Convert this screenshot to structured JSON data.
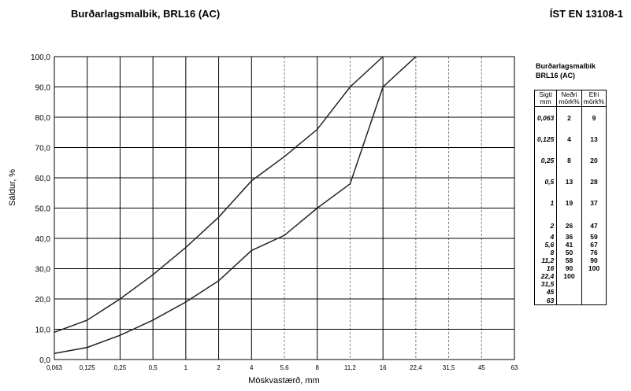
{
  "header": {
    "title": "Burðarlagsmalbik, BRL16 (AC)",
    "standard": "ÍST EN 13108-1"
  },
  "legend": {
    "title_line1": "Burðarlagsmalbik",
    "title_line2": "BRL16 (AC)",
    "col_sieve_1": "Sigti",
    "col_sieve_2": "mm",
    "col_lower_1": "Neðri",
    "col_lower_2": "mörk%",
    "col_upper_1": "Efri",
    "col_upper_2": "mörk%",
    "rows": [
      {
        "sieve": "0,063",
        "lower": "2",
        "upper": "9"
      },
      {
        "sieve": "0,125",
        "lower": "4",
        "upper": "13"
      },
      {
        "sieve": "0,25",
        "lower": "8",
        "upper": "20"
      },
      {
        "sieve": "0,5",
        "lower": "13",
        "upper": "28"
      },
      {
        "sieve": "1",
        "lower": "19",
        "upper": "37"
      },
      {
        "sieve": "2",
        "lower": "26",
        "upper": "47"
      },
      {
        "sieve": "4",
        "lower": "36",
        "upper": "59"
      },
      {
        "sieve": "5,6",
        "lower": "41",
        "upper": "67"
      },
      {
        "sieve": "8",
        "lower": "50",
        "upper": "76"
      },
      {
        "sieve": "11,2",
        "lower": "58",
        "upper": "90"
      },
      {
        "sieve": "16",
        "lower": "90",
        "upper": "100"
      },
      {
        "sieve": "22,4",
        "lower": "100",
        "upper": ""
      },
      {
        "sieve": "31,5",
        "lower": "",
        "upper": ""
      },
      {
        "sieve": "45",
        "lower": "",
        "upper": ""
      },
      {
        "sieve": "63",
        "lower": "",
        "upper": ""
      }
    ]
  },
  "chart_data": {
    "type": "line",
    "ylabel": "Sáldur, %",
    "xlabel": "Möskvastærð, mm",
    "y_ticks": [
      "0,0",
      "10,0",
      "20,0",
      "30,0",
      "40,0",
      "50,0",
      "60,0",
      "70,0",
      "80,0",
      "90,0",
      "100,0"
    ],
    "ylim": [
      0,
      100
    ],
    "x_ticks": [
      "0,063",
      "0,125",
      "0,25",
      "0,5",
      "1",
      "2",
      "4",
      "5,6",
      "8",
      "11,2",
      "16",
      "22,4",
      "31,5",
      "45",
      "63"
    ],
    "dashed_ticks": [
      "5,6",
      "11,2",
      "22,4",
      "31,5",
      "45"
    ],
    "series": [
      {
        "name": "Neðri mörk%",
        "values": [
          2,
          4,
          8,
          13,
          19,
          26,
          36,
          41,
          50,
          58,
          90,
          100
        ]
      },
      {
        "name": "Efri mörk%",
        "values": [
          9,
          13,
          20,
          28,
          37,
          47,
          59,
          67,
          76,
          90,
          100
        ]
      }
    ],
    "line_color": "#222222",
    "grid_color": "#000000",
    "dashed_grid_color": "#808080"
  }
}
